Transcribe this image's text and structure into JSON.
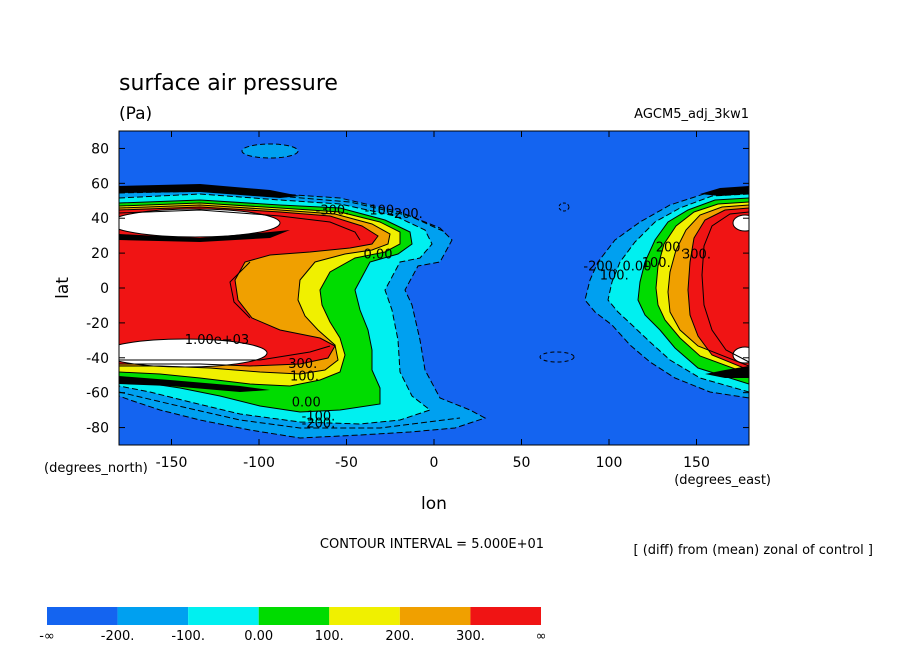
{
  "chart_data": {
    "type": "contour",
    "title": "surface air pressure",
    "units": "(Pa)",
    "experiment": "AGCM5_adj_3kw1",
    "xlabel": "lon",
    "ylabel": "lat",
    "x_unit_note": "(degrees_east)",
    "y_unit_note": "(degrees_north)",
    "xlim": [
      -180,
      180
    ],
    "ylim": [
      -90,
      90
    ],
    "x_ticks": [
      -150,
      -100,
      -50,
      0,
      50,
      100,
      150
    ],
    "y_ticks": [
      -80,
      -60,
      -40,
      -20,
      0,
      20,
      40,
      60,
      80
    ],
    "contour_interval_text": "CONTOUR INTERVAL = 5.000E+01",
    "description_text": "[ (diff) from (mean) zonal of control ]",
    "colorbar": {
      "bounds": [
        "-∞",
        "-200.",
        "-100.",
        "0.00",
        "100.",
        "200.",
        "300.",
        "∞"
      ],
      "colors": [
        "#1464f0",
        "#00a0f0",
        "#00f0f0",
        "#00dc00",
        "#f0f000",
        "#f0a000",
        "#f01414"
      ]
    },
    "contour_labels": [
      {
        "text": "-300.",
        "lon": -58,
        "lat": 42
      },
      {
        "text": "-100.",
        "lon": -30,
        "lat": 42
      },
      {
        "text": "-200.",
        "lon": -16,
        "lat": 40
      },
      {
        "text": "0.00",
        "lon": -32,
        "lat": 17
      },
      {
        "text": "1.00e+03",
        "lon": -124,
        "lat": -32
      },
      {
        "text": "300.",
        "lon": -75,
        "lat": -46
      },
      {
        "text": "100.",
        "lon": -74,
        "lat": -53
      },
      {
        "text": "0.00",
        "lon": -73,
        "lat": -68
      },
      {
        "text": "-100.",
        "lon": -66,
        "lat": -76
      },
      {
        "text": "-200.",
        "lon": -66,
        "lat": -80
      },
      {
        "text": "-200.",
        "lon": 95,
        "lat": 10
      },
      {
        "text": "100.",
        "lon": 103,
        "lat": 5
      },
      {
        "text": "0.00",
        "lon": 116,
        "lat": 10
      },
      {
        "text": "100.",
        "lon": 127,
        "lat": 12
      },
      {
        "text": "200.",
        "lon": 135,
        "lat": 21
      },
      {
        "text": "300.",
        "lon": 150,
        "lat": 17
      }
    ]
  }
}
